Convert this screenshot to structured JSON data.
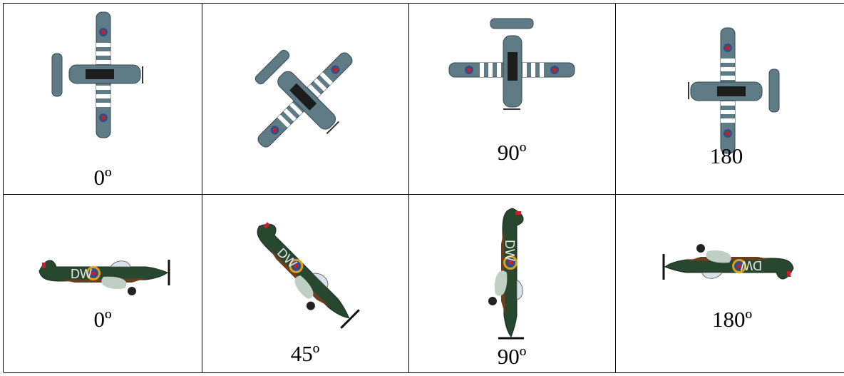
{
  "rows": [
    {
      "name": "top-down-fighter",
      "cells": [
        {
          "label": "0º",
          "rotation": 0
        },
        {
          "label": "",
          "rotation": 45
        },
        {
          "label": "90º",
          "rotation": 90
        },
        {
          "label": "180",
          "rotation": 180
        }
      ]
    },
    {
      "name": "side-view-spitfire",
      "cells": [
        {
          "label": "0º",
          "rotation": 0,
          "fuselage_code": "DW"
        },
        {
          "label": "45º",
          "rotation": 45,
          "fuselage_code": "DW"
        },
        {
          "label": "90º",
          "rotation": 90,
          "fuselage_code": "DW"
        },
        {
          "label": "180º",
          "rotation": 180,
          "fuselage_code": "DW"
        }
      ]
    }
  ],
  "colors": {
    "fuselage_grey": "#5f7c86",
    "roundel_blue": "#2f4f86",
    "roundel_red": "#c8202a",
    "camo_green": "#27472e",
    "camo_brown": "#6a3f1f",
    "roundel_ring": "#e0a11a"
  }
}
